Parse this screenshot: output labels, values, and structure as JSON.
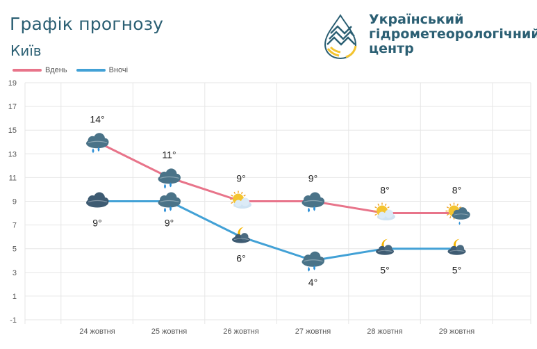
{
  "header": {
    "title": "Графік прогнозу",
    "city": "Київ",
    "org_lines": [
      "Український",
      "гідрометеорологічний",
      "центр"
    ]
  },
  "colors": {
    "day": "#e8748a",
    "night": "#42a1d6",
    "text": "#2b5f73",
    "grid": "#e6e6e6",
    "cloud": "#4a7388",
    "sun": "#f4c430"
  },
  "chart_data": {
    "type": "line",
    "categories": [
      "24 жовтня",
      "25 жовтня",
      "26 жовтня",
      "27 жовтня",
      "28 жовтня",
      "29 жовтня"
    ],
    "ylim": [
      -1,
      19
    ],
    "yticks": [
      -1,
      1,
      3,
      5,
      7,
      9,
      11,
      13,
      15,
      17,
      19
    ],
    "grid": true,
    "legend_position": "top-left",
    "series": [
      {
        "name": "Вдень",
        "values": [
          14,
          11,
          9,
          9,
          8,
          8
        ],
        "labels": [
          "14°",
          "11°",
          "9°",
          "9°",
          "8°",
          "8°"
        ],
        "icons": [
          "cloud-rain",
          "cloud-rain",
          "sun-cloud",
          "cloud-rain",
          "sun-cloud",
          "sun-cloud-rain"
        ]
      },
      {
        "name": "Вночі",
        "values": [
          9,
          9,
          6,
          4,
          5,
          5
        ],
        "labels": [
          "9°",
          "9°",
          "6°",
          "4°",
          "5°",
          "5°"
        ],
        "icons": [
          "cloud-dark",
          "cloud-rain",
          "moon-cloud",
          "cloud-rain",
          "moon-cloud",
          "moon-cloud"
        ]
      }
    ]
  }
}
